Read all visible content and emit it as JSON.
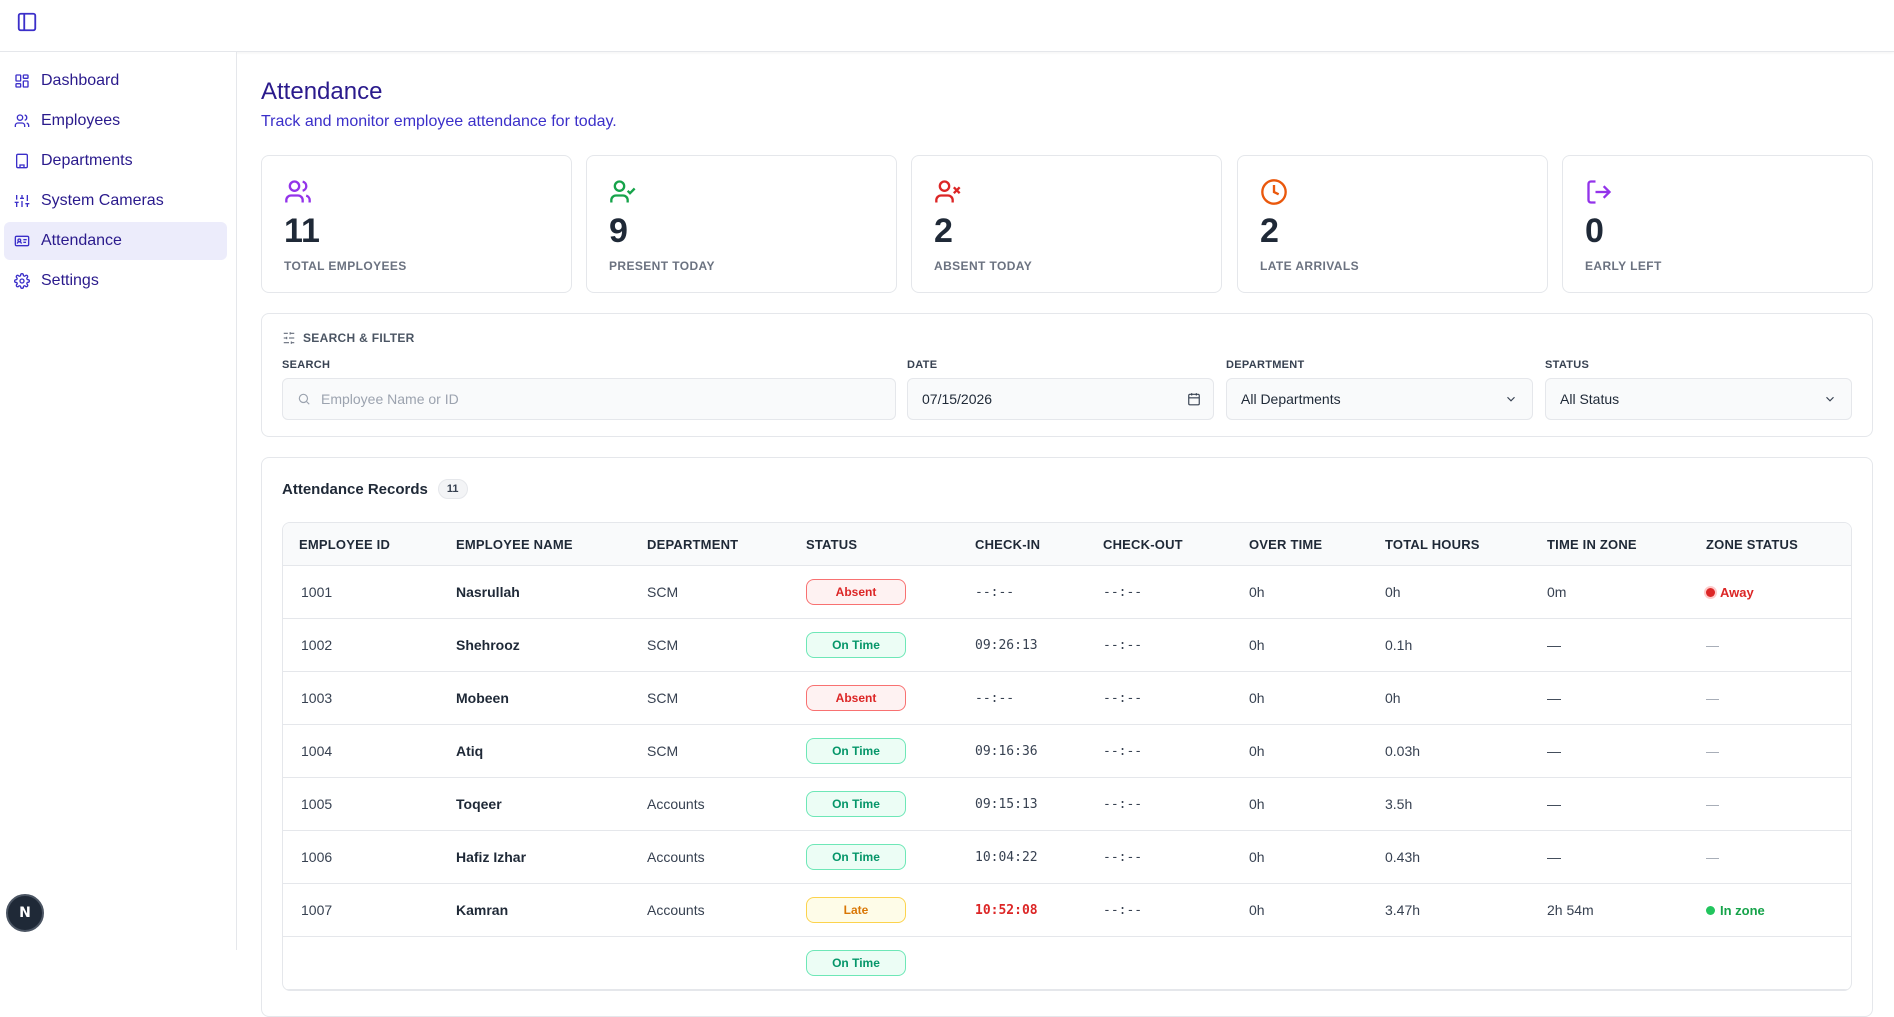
{
  "sidebar": {
    "items": [
      {
        "label": "Dashboard",
        "icon": "grid-icon"
      },
      {
        "label": "Employees",
        "icon": "users-icon"
      },
      {
        "label": "Departments",
        "icon": "building-icon"
      },
      {
        "label": "System Cameras",
        "icon": "sliders-icon"
      },
      {
        "label": "Attendance",
        "icon": "id-card-icon"
      },
      {
        "label": "Settings",
        "icon": "gear-icon"
      }
    ],
    "active": "Attendance",
    "badge": "N"
  },
  "page": {
    "title": "Attendance",
    "subtitle": "Track and monitor employee attendance for today."
  },
  "stats": [
    {
      "value": "11",
      "label": "TOTAL EMPLOYEES",
      "color": "#9333ea"
    },
    {
      "value": "9",
      "label": "PRESENT TODAY",
      "color": "#16a34a"
    },
    {
      "value": "2",
      "label": "ABSENT TODAY",
      "color": "#dc2626"
    },
    {
      "value": "2",
      "label": "LATE ARRIVALS",
      "color": "#ea580c"
    },
    {
      "value": "0",
      "label": "EARLY LEFT",
      "color": "#9333ea"
    }
  ],
  "filter": {
    "heading": "SEARCH & FILTER",
    "search_label": "SEARCH",
    "search_placeholder": "Employee Name or ID",
    "date_label": "DATE",
    "date_value": "07/15/2026",
    "department_label": "DEPARTMENT",
    "department_value": "All Departments",
    "status_label": "STATUS",
    "status_value": "All Status"
  },
  "records": {
    "title": "Attendance Records",
    "count": "11",
    "columns": [
      "EMPLOYEE ID",
      "EMPLOYEE NAME",
      "DEPARTMENT",
      "STATUS",
      "CHECK-IN",
      "CHECK-OUT",
      "OVER TIME",
      "TOTAL HOURS",
      "TIME IN ZONE",
      "ZONE STATUS"
    ],
    "rows": [
      {
        "id": "1001",
        "name": "Nasrullah",
        "dept": "SCM",
        "status": "Absent",
        "checkin": "--:--",
        "checkout": "--:--",
        "overtime": "0h",
        "total": "0h",
        "tiz": "0m",
        "zone": "Away"
      },
      {
        "id": "1002",
        "name": "Shehrooz",
        "dept": "SCM",
        "status": "On Time",
        "checkin": "09:26:13",
        "checkout": "--:--",
        "overtime": "0h",
        "total": "0.1h",
        "tiz": "—",
        "zone": "—"
      },
      {
        "id": "1003",
        "name": "Mobeen",
        "dept": "SCM",
        "status": "Absent",
        "checkin": "--:--",
        "checkout": "--:--",
        "overtime": "0h",
        "total": "0h",
        "tiz": "—",
        "zone": "—"
      },
      {
        "id": "1004",
        "name": "Atiq",
        "dept": "SCM",
        "status": "On Time",
        "checkin": "09:16:36",
        "checkout": "--:--",
        "overtime": "0h",
        "total": "0.03h",
        "tiz": "—",
        "zone": "—"
      },
      {
        "id": "1005",
        "name": "Toqeer",
        "dept": "Accounts",
        "status": "On Time",
        "checkin": "09:15:13",
        "checkout": "--:--",
        "overtime": "0h",
        "total": "3.5h",
        "tiz": "—",
        "zone": "—"
      },
      {
        "id": "1006",
        "name": "Hafiz Izhar",
        "dept": "Accounts",
        "status": "On Time",
        "checkin": "10:04:22",
        "checkout": "--:--",
        "overtime": "0h",
        "total": "0.43h",
        "tiz": "—",
        "zone": "—"
      },
      {
        "id": "1007",
        "name": "Kamran",
        "dept": "Accounts",
        "status": "Late",
        "checkin": "10:52:08",
        "checkout": "--:--",
        "overtime": "0h",
        "total": "3.47h",
        "tiz": "2h 54m",
        "zone": "In zone"
      },
      {
        "id": "",
        "name": "",
        "dept": "",
        "status": "On Time",
        "checkin": "",
        "checkout": "",
        "overtime": "",
        "total": "",
        "tiz": "",
        "zone": ""
      }
    ]
  }
}
